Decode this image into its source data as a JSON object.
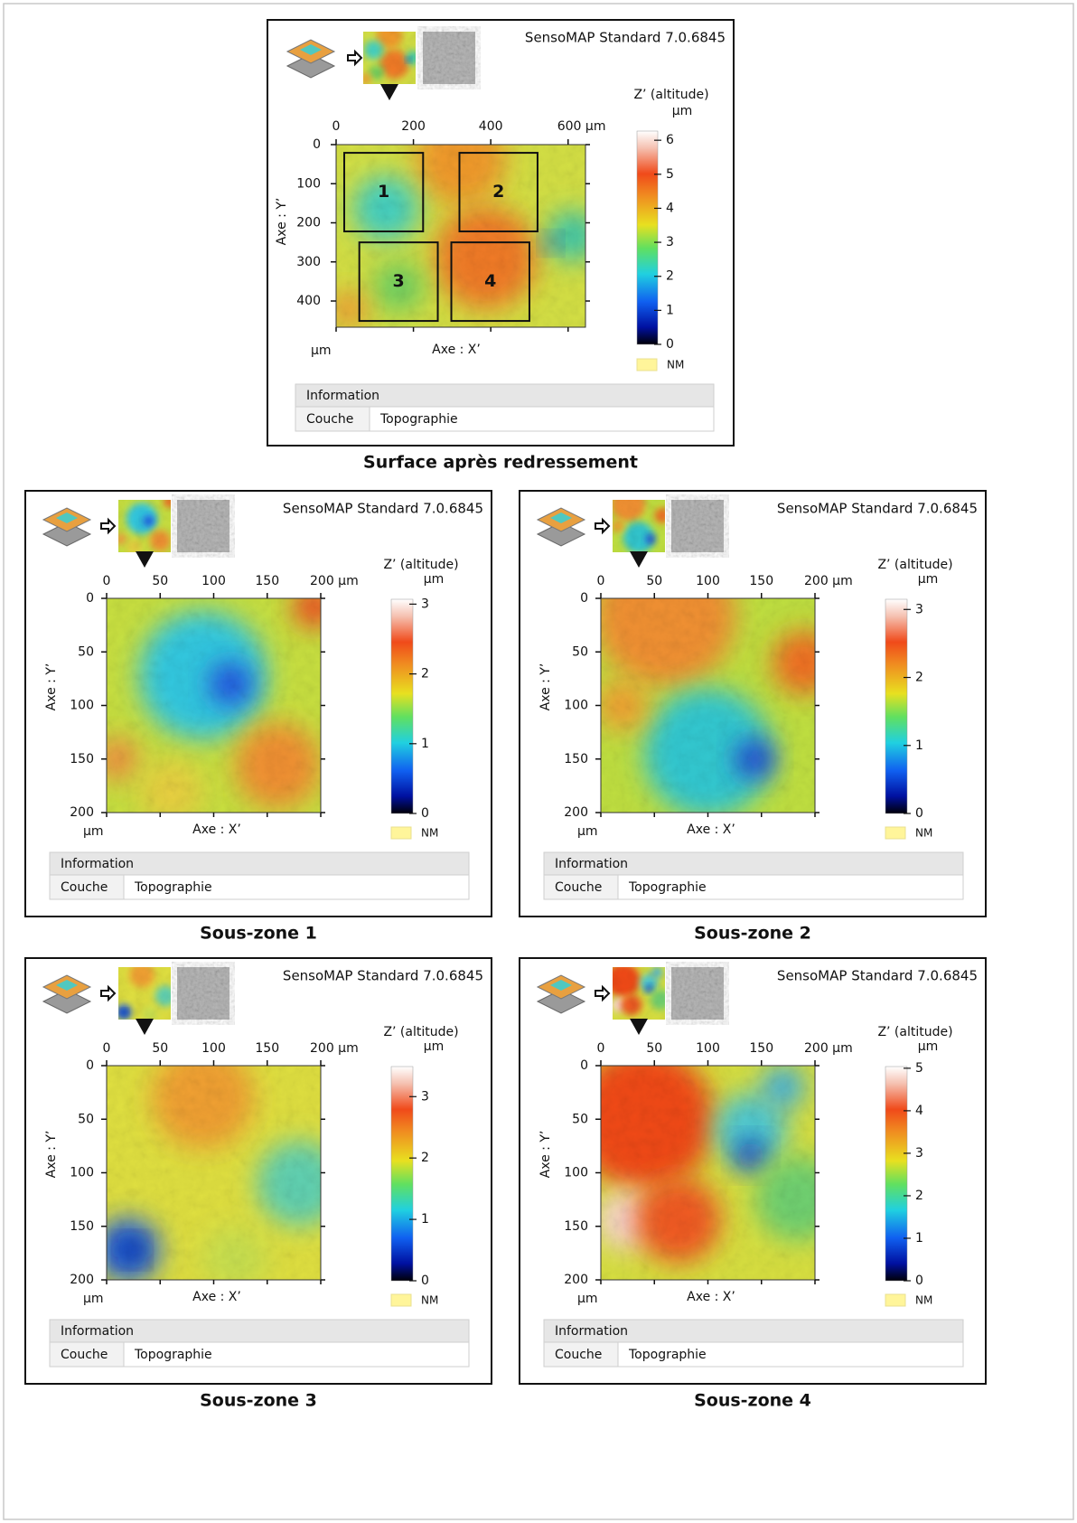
{
  "chart_data": [
    {
      "type": "heatmap",
      "software": "SensoMAP Standard 7.0.6845",
      "caption": "Surface après redressement",
      "xlabel": "Axe : X’",
      "ylabel": "Axe : Y’",
      "unit": "µm",
      "xlim": [
        0,
        645
      ],
      "ylim": [
        0,
        467
      ],
      "xticks": [
        0,
        200,
        400,
        {
          "value": 600,
          "label": "600 µm"
        }
      ],
      "yticks": [
        0,
        100,
        200,
        300,
        400
      ],
      "colorbar": {
        "label": "Z’ (altitude)",
        "unit": "µm",
        "lim": [
          0,
          6.27
        ],
        "ticks": [
          0,
          1,
          2,
          3,
          4,
          5,
          6
        ],
        "nodata": "NM"
      },
      "info": {
        "header": "Information",
        "rows": [
          [
            "Couche",
            "Topographie"
          ]
        ]
      },
      "zones": [
        {
          "label": "1",
          "x": [
            21,
            225
          ],
          "y": [
            21,
            222
          ]
        },
        {
          "label": "2",
          "x": [
            319,
            521
          ],
          "y": [
            21,
            222
          ]
        },
        {
          "label": "3",
          "x": [
            60,
            263
          ],
          "y": [
            250,
            451
          ]
        },
        {
          "label": "4",
          "x": [
            298,
            500
          ],
          "y": [
            250,
            451
          ]
        }
      ]
    },
    {
      "type": "heatmap",
      "software": "SensoMAP Standard 7.0.6845",
      "caption": "Sous-zone 1",
      "xlabel": "Axe : X’",
      "ylabel": "Axe : Y’",
      "unit": "µm",
      "xlim": [
        0,
        200
      ],
      "ylim": [
        0,
        200
      ],
      "xticks": [
        0,
        50,
        100,
        150,
        {
          "value": 200,
          "label": "200 µm"
        }
      ],
      "yticks": [
        0,
        50,
        100,
        150,
        200
      ],
      "colorbar": {
        "label": "Z’ (altitude)",
        "unit": "µm",
        "lim": [
          0,
          3.07
        ],
        "ticks": [
          0,
          1,
          2,
          3
        ],
        "nodata": "NM"
      },
      "info": {
        "header": "Information",
        "rows": [
          [
            "Couche",
            "Topographie"
          ]
        ]
      }
    },
    {
      "type": "heatmap",
      "software": "SensoMAP Standard 7.0.6845",
      "caption": "Sous-zone 2",
      "xlabel": "Axe : X’",
      "ylabel": "Axe : Y’",
      "unit": "µm",
      "xlim": [
        0,
        200
      ],
      "ylim": [
        0,
        200
      ],
      "xticks": [
        0,
        50,
        100,
        150,
        {
          "value": 200,
          "label": "200 µm"
        }
      ],
      "yticks": [
        0,
        50,
        100,
        150,
        200
      ],
      "colorbar": {
        "label": "Z’ (altitude)",
        "unit": "µm",
        "lim": [
          0,
          3.15
        ],
        "ticks": [
          0,
          1,
          2,
          3
        ],
        "nodata": "NM"
      },
      "info": {
        "header": "Information",
        "rows": [
          [
            "Couche",
            "Topographie"
          ]
        ]
      }
    },
    {
      "type": "heatmap",
      "software": "SensoMAP Standard 7.0.6845",
      "caption": "Sous-zone 3",
      "xlabel": "Axe : X’",
      "ylabel": "Axe : Y’",
      "unit": "µm",
      "xlim": [
        0,
        200
      ],
      "ylim": [
        0,
        200
      ],
      "xticks": [
        0,
        50,
        100,
        150,
        {
          "value": 200,
          "label": "200 µm"
        }
      ],
      "yticks": [
        0,
        50,
        100,
        150,
        200
      ],
      "colorbar": {
        "label": "Z’ (altitude)",
        "unit": "µm",
        "lim": [
          0,
          3.49
        ],
        "ticks": [
          0,
          1,
          2,
          3
        ],
        "nodata": "NM"
      },
      "info": {
        "header": "Information",
        "rows": [
          [
            "Couche",
            "Topographie"
          ]
        ]
      }
    },
    {
      "type": "heatmap",
      "software": "SensoMAP Standard 7.0.6845",
      "caption": "Sous-zone 4",
      "xlabel": "Axe : X’",
      "ylabel": "Axe : Y’",
      "unit": "µm",
      "xlim": [
        0,
        200
      ],
      "ylim": [
        0,
        200
      ],
      "xticks": [
        0,
        50,
        100,
        150,
        {
          "value": 200,
          "label": "200 µm"
        }
      ],
      "yticks": [
        0,
        50,
        100,
        150,
        200
      ],
      "colorbar": {
        "label": "Z’ (altitude)",
        "unit": "µm",
        "lim": [
          0,
          5.04
        ],
        "ticks": [
          0,
          1,
          2,
          3,
          4,
          5
        ],
        "nodata": "NM"
      },
      "info": {
        "header": "Information",
        "rows": [
          [
            "Couche",
            "Topographie"
          ]
        ]
      }
    }
  ]
}
